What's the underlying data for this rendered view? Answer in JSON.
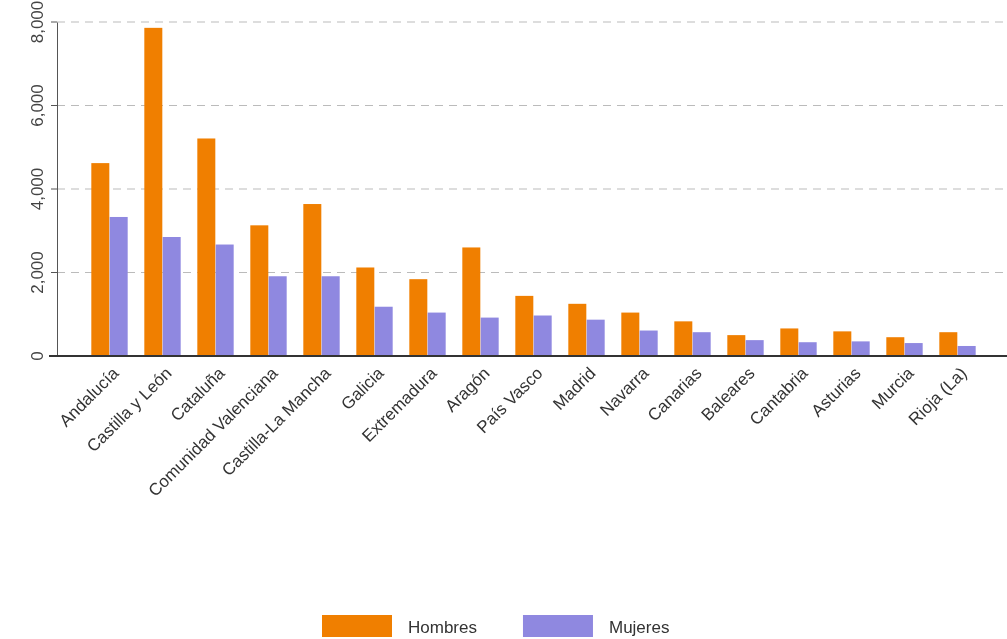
{
  "chart_data": {
    "type": "bar",
    "categories": [
      "Andalucía",
      "Castilla y León",
      "Cataluña",
      "Comunidad Valenciana",
      "Castilla-La Mancha",
      "Galicia",
      "Extremadura",
      "Aragón",
      "País Vasco",
      "Madrid",
      "Navarra",
      "Canarias",
      "Baleares",
      "Cantabria",
      "Asturias",
      "Murcia",
      "Rioja (La)"
    ],
    "series": [
      {
        "name": "Hombres",
        "color": "#f07f00",
        "values": [
          4620,
          7860,
          5210,
          3130,
          3640,
          2120,
          1840,
          2600,
          1440,
          1250,
          1040,
          830,
          500,
          660,
          590,
          450,
          570
        ]
      },
      {
        "name": "Mujeres",
        "color": "#8f88e0",
        "values": [
          3330,
          2850,
          2670,
          1910,
          1910,
          1180,
          1040,
          920,
          970,
          870,
          610,
          570,
          380,
          330,
          350,
          310,
          240
        ]
      }
    ],
    "ylim": [
      0,
      8000
    ],
    "yticks": [
      0,
      {
        "value": 2000,
        "label": "2,000"
      },
      {
        "value": 4000,
        "label": "4,000"
      },
      {
        "value": 6000,
        "label": "6,000"
      },
      {
        "value": 8000,
        "label": "8,000"
      }
    ],
    "grid": "y",
    "legend": "bottom"
  }
}
